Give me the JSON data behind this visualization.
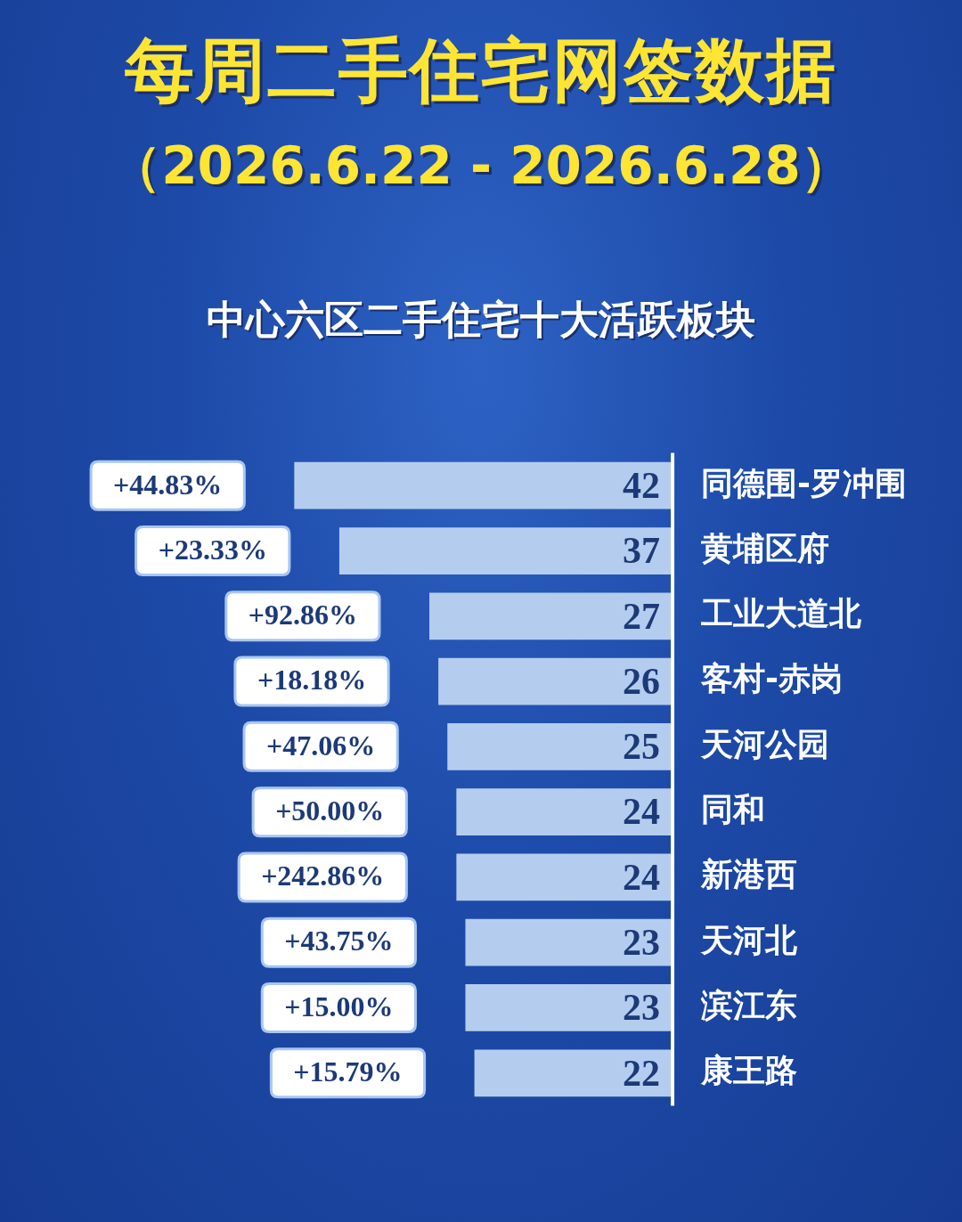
{
  "chart_data": {
    "type": "bar",
    "orientation": "horizontal",
    "title": "每周二手住宅网签数据",
    "subtitle": "（2026.6.22 - 2026.6.28）",
    "categories": [
      "同德围-罗冲围",
      "黄埔区府",
      "工业大道北",
      "客村-赤岗",
      "天河公园",
      "同和",
      "新港西",
      "天河北",
      "滨江东",
      "康王路"
    ],
    "values": [
      42,
      37,
      27,
      26,
      25,
      24,
      24,
      23,
      23,
      22
    ],
    "color": "#b4cdef",
    "tick_labels": "y",
    "grid": false,
    "legend": false,
    "data_labels": true,
    "annotations": [
      "中心六区二手住宅十大活跃板块",
      "+44.83%",
      "+23.33%",
      "+92.86%",
      "+18.18%",
      "+47.06%",
      "+50.00%",
      "+242.86%",
      "+43.75%",
      "+15.00%",
      "+15.79%"
    ]
  }
}
